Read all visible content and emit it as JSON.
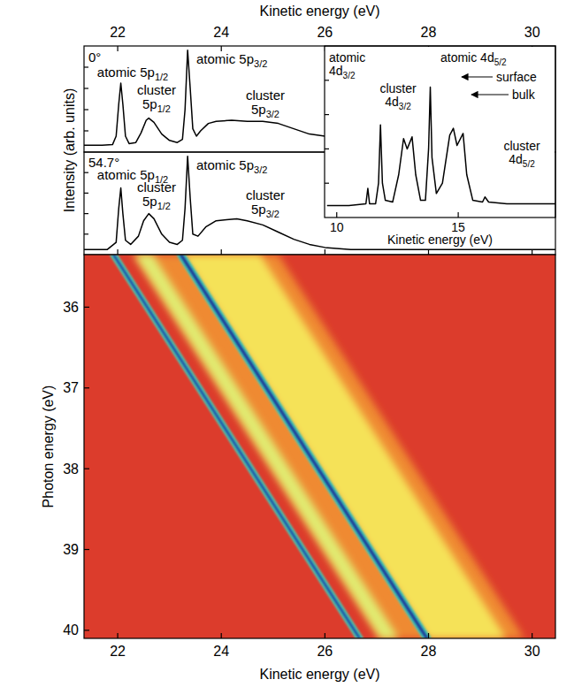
{
  "chart_data": [
    {
      "type": "line",
      "x_label": "Kinetic energy (eV)",
      "y_label": "Intensity (arb. units)",
      "xlim": [
        21.35,
        30.45
      ],
      "xticks": [
        22,
        24,
        26,
        28,
        30
      ],
      "ylim": [
        0,
        100
      ],
      "yticks": [
        20,
        40,
        60,
        80
      ],
      "tick_labels": "x",
      "annotations": [
        "0°",
        "atomic 5p1/2",
        "cluster 5p1/2",
        "atomic 5p3/2",
        "cluster 5p3/2"
      ],
      "x": [
        21.35,
        21.7,
        21.9,
        21.97,
        22.02,
        22.06,
        22.1,
        22.15,
        22.22,
        22.35,
        22.45,
        22.55,
        22.6,
        22.7,
        22.85,
        23.0,
        23.15,
        23.25,
        23.3,
        23.35,
        23.4,
        23.45,
        23.52,
        23.6,
        23.75,
        23.9,
        24.2,
        24.5,
        24.8,
        25.1,
        25.4,
        25.7,
        26.0
      ],
      "series": [
        {
          "color": "#000000",
          "values": [
            6.5,
            6.5,
            7,
            15,
            45,
            65,
            45,
            15,
            8,
            9,
            18,
            30,
            32,
            28,
            17,
            11,
            9,
            12,
            40,
            96,
            60,
            22,
            15,
            20,
            27,
            29,
            30,
            29,
            29,
            27,
            22,
            17,
            15
          ]
        }
      ]
    },
    {
      "type": "line",
      "xlim": [
        21.35,
        30.45
      ],
      "xticks": [
        22,
        24,
        26,
        28,
        30
      ],
      "ylim": [
        0,
        100
      ],
      "yticks": [
        20,
        40,
        60,
        80
      ],
      "tick_labels": false,
      "annotations": [
        "54.7°",
        "atomic 5p1/2",
        "cluster 5p1/2",
        "atomic 5p3/2",
        "cluster 5p3/2"
      ],
      "x": [
        21.35,
        21.8,
        21.97,
        22.02,
        22.06,
        22.1,
        22.15,
        22.25,
        22.4,
        22.5,
        22.6,
        22.7,
        22.85,
        23.0,
        23.15,
        23.25,
        23.3,
        23.35,
        23.4,
        23.45,
        23.55,
        23.7,
        23.9,
        24.1,
        24.3,
        24.5,
        24.8,
        25.1,
        25.4,
        25.7,
        26.0,
        26.5,
        27.5,
        28.5,
        29.5,
        30.45
      ],
      "series": [
        {
          "color": "#000000",
          "values": [
            5,
            5,
            12,
            45,
            65,
            40,
            14,
            10,
            18,
            33,
            40,
            35,
            20,
            12,
            10,
            14,
            45,
            96,
            55,
            20,
            18,
            27,
            33,
            34,
            35,
            33,
            29,
            22,
            15,
            10,
            7,
            5,
            5,
            5,
            5,
            5
          ]
        }
      ]
    },
    {
      "type": "line",
      "x_label": "Kinetic energy (eV)",
      "xlim": [
        9.5,
        19.0
      ],
      "xticks": [
        10,
        15
      ],
      "ylim": [
        0,
        100
      ],
      "yticks": [
        20,
        40,
        60,
        80
      ],
      "tick_labels": "x",
      "annotations": [
        "atomic 4d3/2",
        "cluster 4d3/2",
        "atomic 4d5/2",
        "surface",
        "bulk",
        "cluster 4d5/2"
      ],
      "x": [
        9.6,
        10.5,
        11.2,
        11.28,
        11.35,
        11.6,
        11.72,
        11.8,
        11.88,
        12.0,
        12.3,
        12.55,
        12.75,
        12.9,
        13.1,
        13.25,
        13.45,
        13.65,
        13.78,
        13.85,
        13.92,
        14.1,
        14.35,
        14.65,
        14.8,
        14.95,
        15.2,
        15.35,
        15.6,
        16.0,
        16.1,
        16.25,
        17.0,
        18.0,
        19.0
      ],
      "series": [
        {
          "color": "#000000",
          "values": [
            7,
            7,
            8,
            17,
            8,
            8,
            20,
            54,
            20,
            10,
            9,
            25,
            46,
            40,
            47,
            25,
            10,
            10,
            40,
            76,
            35,
            14,
            20,
            48,
            52,
            42,
            49,
            25,
            10,
            9,
            12,
            9,
            8,
            8,
            8
          ]
        }
      ]
    },
    {
      "type": "heatmap",
      "x_label": "Kinetic energy (eV)",
      "y_label": "Photon energy (eV)",
      "xlim": [
        21.35,
        30.45
      ],
      "xticks": [
        22,
        24,
        26,
        28,
        30
      ],
      "ylim": [
        35.35,
        40.1
      ],
      "yticks": [
        36,
        37,
        38,
        39,
        40
      ],
      "tick_labels": true,
      "zlim": [
        0,
        1
      ],
      "features": [
        {
          "ke": [
            23.7,
            28.45
          ],
          "width": 2.8,
          "intensity": 0.28
        },
        {
          "ke": [
            24.0,
            28.75
          ],
          "width": 1.5,
          "intensity": 0.5
        },
        {
          "ke": [
            22.5,
            27.25
          ],
          "width": 0.35,
          "intensity": 0.58
        },
        {
          "ke": [
            21.92,
            26.67
          ],
          "width": 0.16,
          "intensity": 0.78
        },
        {
          "ke": [
            21.92,
            26.67
          ],
          "width": 0.06,
          "intensity": 0.97
        },
        {
          "ke": [
            23.22,
            27.97
          ],
          "width": 0.18,
          "intensity": 0.8
        },
        {
          "ke": [
            23.22,
            27.97
          ],
          "width": 0.07,
          "intensity": 1.0
        }
      ]
    }
  ]
}
